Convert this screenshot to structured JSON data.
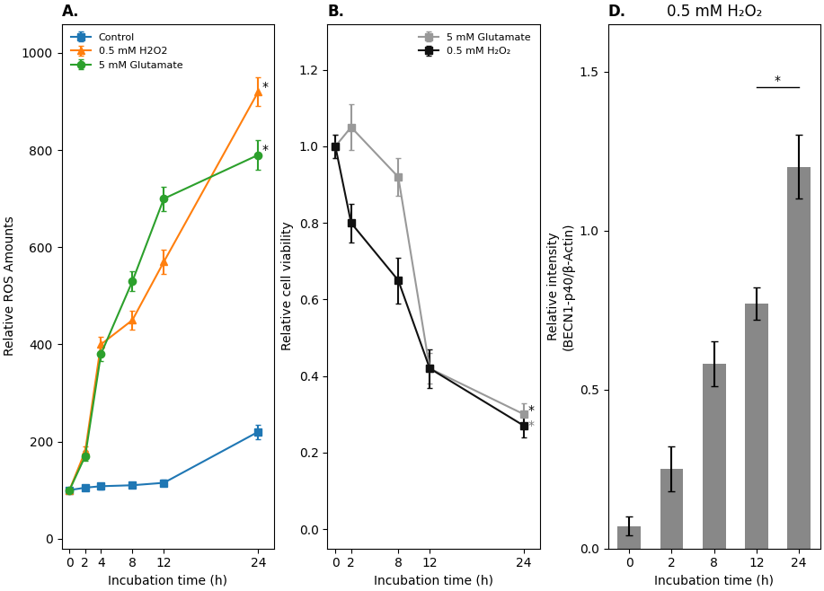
{
  "chart_data": [
    {
      "type": "line",
      "title": "A.",
      "x": [
        0,
        2,
        4,
        8,
        12,
        24
      ],
      "xlabel": "Incubation time (h)",
      "ylabel": "Relative ROS Amounts",
      "xlim": [
        -1,
        26
      ],
      "ylim": [
        -20,
        1060
      ],
      "xticks": [
        0,
        2,
        4,
        8,
        12,
        24
      ],
      "yticks": [
        0,
        200,
        400,
        600,
        800,
        1000
      ],
      "legend": "upper left",
      "series": [
        {
          "name": "Control",
          "marker": "square",
          "values": [
            100,
            105,
            108,
            110,
            115,
            220
          ],
          "errors": [
            5,
            5,
            6,
            6,
            7,
            15
          ]
        },
        {
          "name": "0.5 mM H2O2",
          "marker": "triangle",
          "values": [
            100,
            180,
            400,
            450,
            570,
            920
          ],
          "errors": [
            5,
            10,
            15,
            20,
            25,
            30
          ]
        },
        {
          "name": "5 mM Glutamate",
          "marker": "circle",
          "values": [
            100,
            170,
            380,
            530,
            700,
            790
          ],
          "errors": [
            5,
            10,
            15,
            20,
            25,
            30
          ]
        }
      ],
      "annotations": [
        {
          "text": "*",
          "x": 24.5,
          "y": 930
        },
        {
          "text": "*",
          "x": 24.5,
          "y": 800
        }
      ]
    },
    {
      "type": "line",
      "title": "B.",
      "x": [
        0,
        2,
        8,
        12,
        24
      ],
      "xlabel": "Incubation time (h)",
      "ylabel": "Relative cell viability",
      "xlim": [
        -1,
        26
      ],
      "ylim": [
        -0.05,
        1.32
      ],
      "xticks": [
        0,
        2,
        8,
        12,
        24
      ],
      "yticks": [
        0.0,
        0.2,
        0.4,
        0.6,
        0.8,
        1.0,
        1.2
      ],
      "legend": "upper right",
      "series": [
        {
          "name": "5 mM Glutamate",
          "marker": "square",
          "color": "#999999",
          "values": [
            1.0,
            1.05,
            0.92,
            0.42,
            0.3
          ],
          "errors": [
            0.03,
            0.06,
            0.05,
            0.04,
            0.03
          ]
        },
        {
          "name": "0.5 mM H₂O₂",
          "marker": "square",
          "color": "#111111",
          "values": [
            1.0,
            0.8,
            0.65,
            0.42,
            0.27
          ],
          "errors": [
            0.03,
            0.05,
            0.06,
            0.05,
            0.03
          ]
        }
      ],
      "annotations": [
        {
          "text": "*",
          "x": 24.5,
          "y": 0.31
        },
        {
          "text": "*",
          "x": 24.5,
          "y": 0.27,
          "color": "#777777"
        }
      ]
    },
    {
      "type": "bar",
      "title": "D.",
      "subtitle": "0.5 mM H₂O₂",
      "categories": [
        "0",
        "2",
        "8",
        "12",
        "24"
      ],
      "values": [
        0.07,
        0.25,
        0.58,
        0.77,
        1.2
      ],
      "errors": [
        0.03,
        0.07,
        0.07,
        0.05,
        0.1
      ],
      "color": "#888888",
      "xlabel": "Incubation time (h)",
      "ylabel": "Relative intensity\n(BECN1-p40/β-Actin)",
      "ylim": [
        0,
        1.65
      ],
      "yticks": [
        0.0,
        0.5,
        1.0,
        1.5
      ],
      "annotations": [
        {
          "text": "*",
          "between": [
            "12",
            "24"
          ],
          "y": 1.45
        }
      ]
    }
  ]
}
